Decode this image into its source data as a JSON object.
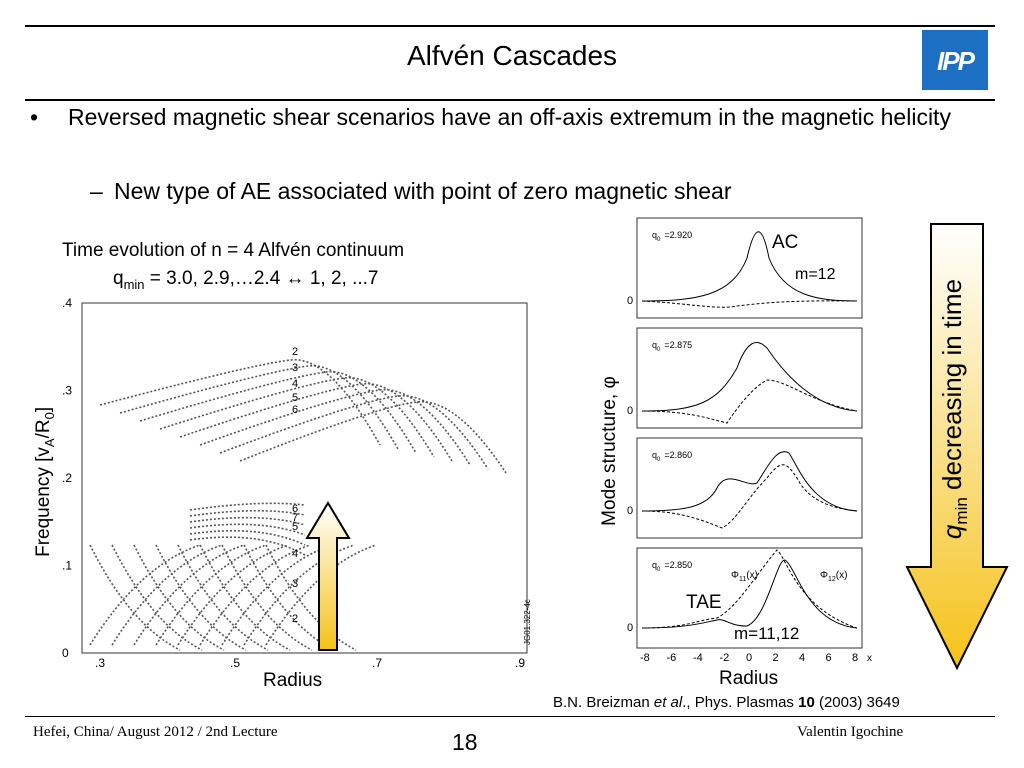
{
  "header": {
    "title": "Alfvén Cascades",
    "logo_text": "IPP"
  },
  "bullets": {
    "bullet_marker": "•",
    "main": "Reversed magnetic shear scenarios have an off-axis extremum in the magnetic helicity",
    "sub_marker": "–",
    "sub": "New type of AE associated with point of zero magnetic shear"
  },
  "left_plot": {
    "caption_line1": "Time evolution of n = 4 Alfvén continuum",
    "caption_line2_pre": "q",
    "caption_line2_sub": "min",
    "caption_line2_post": " = 3.0, 2.9,…2.4 ↔ 1, 2, ...7",
    "ylabel_pre": "Frequency [v",
    "ylabel_sub1": "A",
    "ylabel_mid": "/R",
    "ylabel_sub2": "0",
    "ylabel_post": "]",
    "xlabel": "Radius",
    "ytick_labels": [
      ".4",
      ".3",
      ".2",
      ".1",
      "0"
    ],
    "xtick_labels": [
      ".3",
      ".5",
      ".7",
      ".9"
    ],
    "upper_band_labels": [
      "2",
      "3",
      "4",
      "5",
      "6"
    ],
    "lower_band_labels": [
      "6",
      "7",
      "5",
      "4",
      "3",
      "2"
    ],
    "code": "JG01.322-4c"
  },
  "right_plots": {
    "ylabel": "Mode structure, φ",
    "xlabel": "Radius",
    "panels": [
      {
        "q": "q",
        "q_sub": "0",
        "q_val": "=2.920"
      },
      {
        "q": "q",
        "q_sub": "0",
        "q_val": "=2.875"
      },
      {
        "q": "q",
        "q_sub": "0",
        "q_val": "=2.860"
      },
      {
        "q": "q",
        "q_sub": "0",
        "q_val": "=2.850"
      }
    ],
    "zero_label": "0",
    "ac_label": "AC",
    "m12_label": "m=12",
    "tae_label": "TAE",
    "m1112_label": "m=11,12",
    "phi11": "Φ",
    "phi11_sub": "11",
    "phi11_post": "(x)",
    "phi12": "Φ",
    "phi12_sub": "12",
    "phi12_post": "(x)",
    "xtick_labels": [
      "-8",
      "-6",
      "-4",
      "-2",
      "0",
      "2",
      "4",
      "6",
      "8"
    ],
    "x_axis_symbol": "x"
  },
  "arrow": {
    "label_pre": "q",
    "label_sub": "min",
    "label_post": " decreasing in time",
    "color": "#f5c21a"
  },
  "reference": {
    "authors": "B.N. Breizman ",
    "etal": "et al",
    "rest1": "., Phys. Plasmas ",
    "volume": "10",
    "rest2": " (2003) 3649"
  },
  "footer": {
    "left": "Hefei, China/ August 2012 / 2nd Lecture",
    "page": "18",
    "right": "Valentin Igochine"
  }
}
